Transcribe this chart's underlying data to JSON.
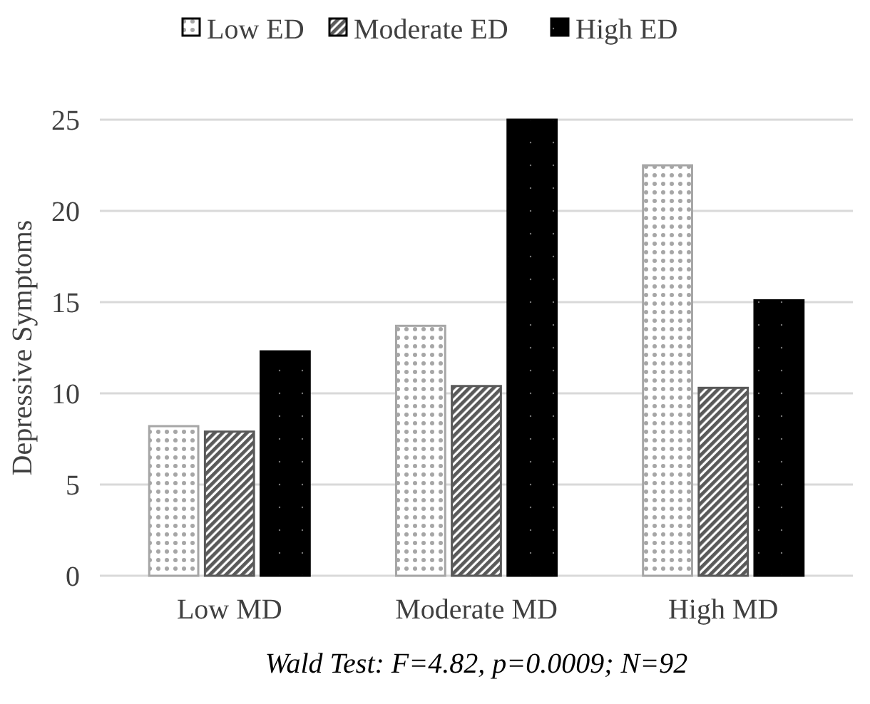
{
  "chart_data": {
    "type": "bar",
    "ylabel": "Depressive Symptoms",
    "categories": [
      "Low MD",
      "Moderate MD",
      "High MD"
    ],
    "series": [
      {
        "name": "Low ED",
        "color": "#a6a6a6",
        "values": [
          8.2,
          13.7,
          22.5
        ]
      },
      {
        "name": "Moderate ED",
        "color": "#595959",
        "values": [
          7.9,
          10.4,
          10.3
        ]
      },
      {
        "name": "High ED",
        "color": "#000000",
        "values": [
          12.3,
          25,
          15.1
        ]
      }
    ],
    "ylim": [
      0,
      25
    ],
    "yticks": [
      0,
      5,
      10,
      15,
      20,
      25
    ],
    "grid": "y",
    "legend": "top",
    "annotations": [
      "Wald Test: F=4.82, p=0.0009; N=92"
    ]
  }
}
